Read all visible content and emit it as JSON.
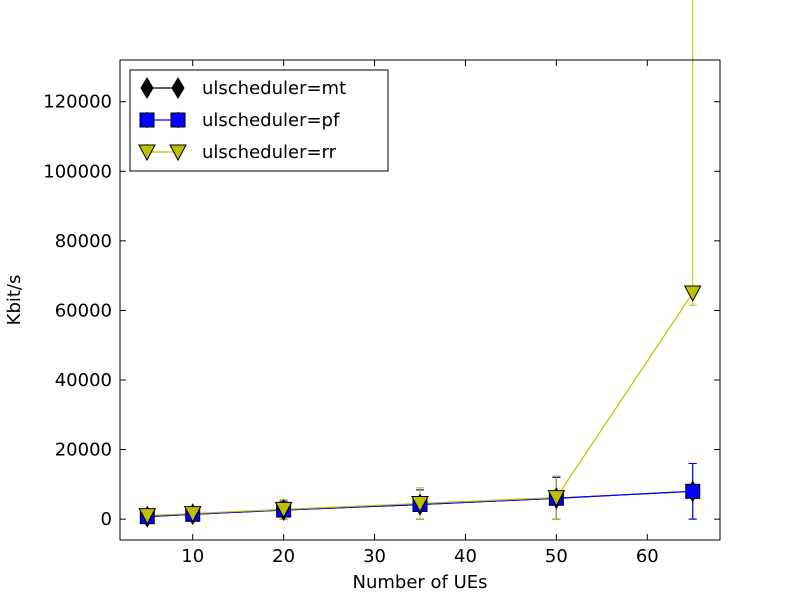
{
  "chart_data": {
    "type": "line",
    "title": "",
    "xlabel": "Number of UEs",
    "ylabel": "Kbit/s",
    "xlim": [
      2,
      68
    ],
    "ylim": [
      -6000,
      132000
    ],
    "x_ticks": [
      10,
      20,
      30,
      40,
      50,
      60
    ],
    "y_ticks": [
      0,
      20000,
      40000,
      60000,
      80000,
      100000,
      120000
    ],
    "grid": false,
    "legend_position": "top-left",
    "x": [
      5,
      10,
      20,
      35,
      50,
      65
    ],
    "series": [
      {
        "name": "ulscheduler=mt",
        "color": "#000000",
        "marker": "diamond",
        "values": [
          700,
          1400,
          2600,
          4200,
          6000,
          8000
        ],
        "err_low": [
          700,
          1400,
          2600,
          4200,
          6000,
          8000
        ],
        "err_high": [
          700,
          1400,
          2600,
          4200,
          6000,
          8000
        ]
      },
      {
        "name": "ulscheduler=pf",
        "color": "#0000ff",
        "marker": "square",
        "values": [
          700,
          1400,
          2600,
          4200,
          6000,
          8000
        ],
        "err_low": [
          700,
          1400,
          2600,
          4200,
          6000,
          8000
        ],
        "err_high": [
          700,
          1400,
          2600,
          4200,
          6000,
          8000
        ]
      },
      {
        "name": "ulscheduler=rr",
        "color": "#bfbf00",
        "marker": "triangle-down",
        "values": [
          1000,
          1600,
          2800,
          4500,
          6200,
          65000
        ],
        "err_low": [
          1000,
          1600,
          2800,
          4500,
          6200,
          3500
        ],
        "err_high": [
          1000,
          1600,
          2800,
          4500,
          6200,
          126500
        ]
      }
    ]
  }
}
